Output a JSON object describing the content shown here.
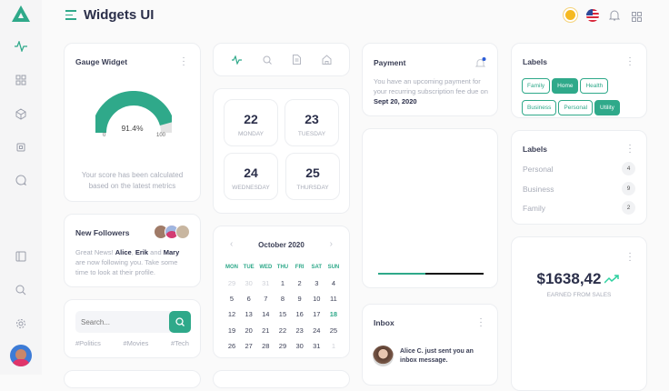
{
  "app": {
    "title": "Widgets UI",
    "accent": "#2fa98a"
  },
  "sidebar": {
    "icons": [
      "activity-icon",
      "grid-icon",
      "cube-icon",
      "cpu-icon",
      "chat-icon",
      "panel-icon",
      "search-icon",
      "settings-icon"
    ]
  },
  "gauge": {
    "title": "Gauge Widget",
    "value": 91.4,
    "value_label": "91.4%",
    "min": "0",
    "max": "100",
    "caption": "Your score has been calculated based on the latest metrics"
  },
  "days": [
    {
      "num": "22",
      "name": "MONDAY"
    },
    {
      "num": "23",
      "name": "TUESDAY"
    },
    {
      "num": "24",
      "name": "WEDNESDAY"
    },
    {
      "num": "25",
      "name": "THURSDAY"
    }
  ],
  "calendar": {
    "month": "October 2020",
    "weekdays": [
      "MON",
      "TUE",
      "WED",
      "THU",
      "FRI",
      "SAT",
      "SUN"
    ],
    "weeks": [
      [
        "29",
        "30",
        "31",
        "1",
        "2",
        "3",
        "4"
      ],
      [
        "5",
        "6",
        "7",
        "8",
        "9",
        "10",
        "11"
      ],
      [
        "12",
        "13",
        "14",
        "15",
        "16",
        "17",
        "18"
      ],
      [
        "19",
        "20",
        "21",
        "22",
        "23",
        "24",
        "25"
      ],
      [
        "26",
        "27",
        "28",
        "29",
        "30",
        "31",
        "1"
      ]
    ],
    "today": "18"
  },
  "followers": {
    "title": "New Followers",
    "text_pre": "Great News! ",
    "n1": "Alice",
    "sep": ", ",
    "n2": "Erik",
    "and": " and ",
    "n3": "Mary",
    "text_post": " are now following you. Take some time to look at their profile."
  },
  "search": {
    "placeholder": "Search...",
    "tags": [
      "#Politics",
      "#Movies",
      "#Tech"
    ]
  },
  "payment": {
    "title": "Payment",
    "text": "You have an upcoming payment for your recurring subscription fee due on",
    "date": "Sept 20, 2020"
  },
  "progress": {
    "value": 0.45
  },
  "inbox": {
    "title": "Inbox",
    "message": "Alice C. just sent you an inbox message."
  },
  "labels": {
    "title": "Labels",
    "tags": [
      {
        "label": "Family",
        "active": false
      },
      {
        "label": "Home",
        "active": true
      },
      {
        "label": "Health",
        "active": false
      },
      {
        "label": "Business",
        "active": false
      },
      {
        "label": "Personal",
        "active": false
      },
      {
        "label": "Utility",
        "active": true
      }
    ]
  },
  "label_list": {
    "title": "Labels",
    "items": [
      {
        "label": "Personal",
        "count": "4"
      },
      {
        "label": "Business",
        "count": "9"
      },
      {
        "label": "Family",
        "count": "2"
      }
    ]
  },
  "sales": {
    "amount": "$1638,42",
    "caption": "EARNED FROM SALES"
  }
}
